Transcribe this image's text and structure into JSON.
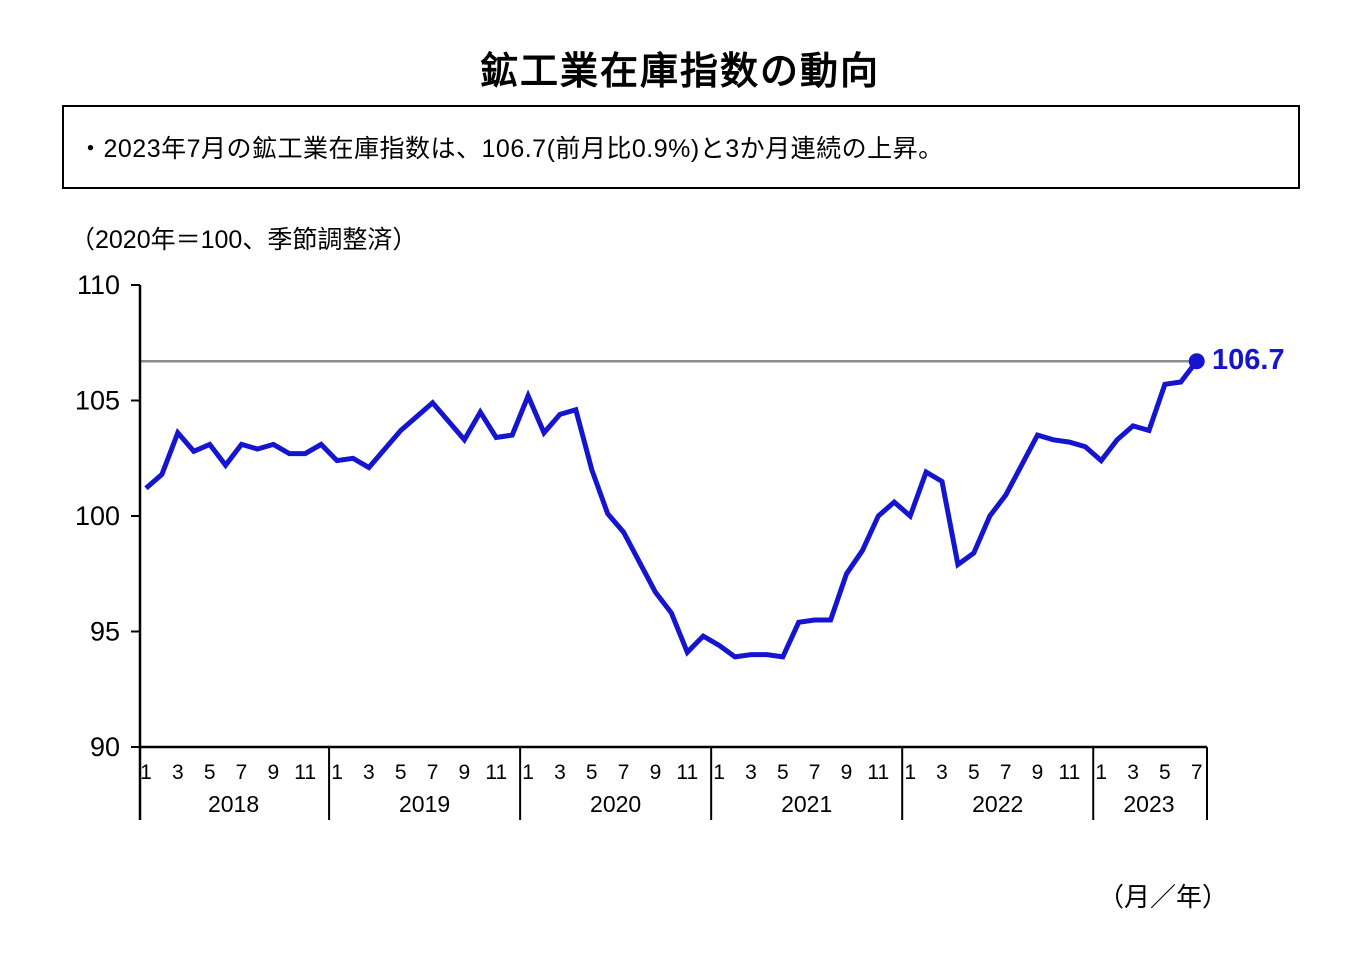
{
  "page": {
    "title": "鉱工業在庫指数の動向",
    "summary": "・2023年7月の鉱工業在庫指数は、106.7(前月比0.9%)と3か月連続の上昇。",
    "axis_note": "（2020年＝100、季節調整済）",
    "x_unit_label": "（月／年）"
  },
  "chart_data": {
    "type": "line",
    "title": "鉱工業在庫指数の動向",
    "subtitle": "（2020年＝100、季節調整済）",
    "ylabel": "鉱工業在庫指数（2020年＝100、季節調整済）",
    "xlabel": "（月／年）",
    "ylim": [
      90,
      110
    ],
    "yticks": [
      110,
      105,
      100,
      95,
      90
    ],
    "grid": false,
    "reference_line_value": 106.7,
    "annotation": "106.7",
    "legend_position": "none",
    "month_ticks_per_year": [
      1,
      3,
      5,
      7,
      9,
      11
    ],
    "line_color": "#1515d0",
    "reference_line_color": "#8c8c8c",
    "axis_color": "#000000",
    "last_point": {
      "year": 2023,
      "month": 7,
      "value": 106.7,
      "mom_change_pct": 0.9
    },
    "series": [
      {
        "name": "鉱工業在庫指数",
        "years": [
          {
            "year": 2018,
            "month_ticks": [
              1,
              3,
              5,
              7,
              9,
              11
            ],
            "values": [
              101.2,
              101.8,
              103.6,
              102.8,
              103.1,
              102.2,
              103.1,
              102.9,
              103.1,
              102.7,
              102.7,
              103.1
            ]
          },
          {
            "year": 2019,
            "month_ticks": [
              1,
              3,
              5,
              7,
              9,
              11
            ],
            "values": [
              102.4,
              102.5,
              102.1,
              102.9,
              103.7,
              104.3,
              104.9,
              104.1,
              103.3,
              104.5,
              103.4,
              103.5
            ]
          },
          {
            "year": 2020,
            "month_ticks": [
              1,
              3,
              5,
              7,
              9,
              11
            ],
            "values": [
              105.2,
              103.6,
              104.4,
              104.6,
              102.0,
              100.1,
              99.3,
              98.0,
              96.7,
              95.8,
              94.1,
              94.8
            ]
          },
          {
            "year": 2021,
            "month_ticks": [
              1,
              3,
              5,
              7,
              9,
              11
            ],
            "values": [
              94.4,
              93.9,
              94.0,
              94.0,
              93.9,
              95.4,
              95.5,
              95.5,
              97.5,
              98.5,
              100.0,
              100.6
            ]
          },
          {
            "year": 2022,
            "month_ticks": [
              1,
              3,
              5,
              7,
              9,
              11
            ],
            "values": [
              100.0,
              101.9,
              101.5,
              97.9,
              98.4,
              100.0,
              100.9,
              102.2,
              103.5,
              103.3,
              103.2,
              103.0
            ]
          },
          {
            "year": 2023,
            "month_ticks": [
              1,
              3,
              5,
              7
            ],
            "values": [
              102.4,
              103.3,
              103.9,
              103.7,
              105.7,
              105.8,
              106.7
            ]
          }
        ]
      }
    ]
  }
}
